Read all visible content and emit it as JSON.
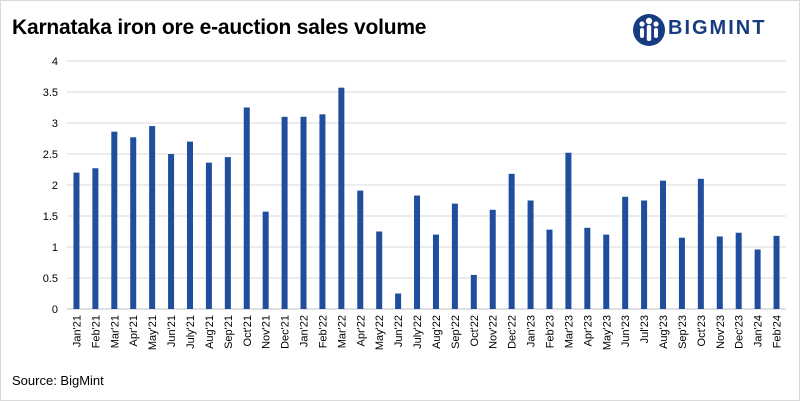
{
  "chart_data": {
    "type": "bar",
    "title": "Karnataka iron ore e-auction sales volume",
    "xlabel": "",
    "ylabel": "",
    "ylim": [
      0,
      4
    ],
    "yticks": [
      "0",
      "0.5",
      "1",
      "1.5",
      "2",
      "2.5",
      "3",
      "3.5",
      "4"
    ],
    "grid": true,
    "color": "#1f4e9e",
    "categories": [
      "Jan'21",
      "Feb'21",
      "Mar'21",
      "Apr'21",
      "May'21",
      "Jun'21",
      "July'21",
      "Aug'21",
      "Sep'21",
      "Oct'21",
      "Nov'21",
      "Dec'21",
      "Jan'22",
      "Feb'22",
      "Mar'22",
      "Apr'22",
      "May'22",
      "Jun'22",
      "July'22",
      "Aug'22",
      "Sep'22",
      "Oct'22",
      "Nov'22",
      "Dec'22",
      "Jan'23",
      "Feb'23",
      "Mar'23",
      "Apr'23",
      "May'23",
      "Jun'23",
      "Jul'23",
      "Aug'23",
      "Sep'23",
      "Oct'23",
      "Nov'23",
      "Dec'23",
      "Jan'24",
      "Feb'24"
    ],
    "values": [
      2.2,
      2.27,
      2.86,
      2.77,
      2.95,
      2.5,
      2.7,
      2.36,
      2.45,
      3.25,
      1.57,
      3.1,
      3.1,
      3.14,
      3.57,
      1.91,
      1.25,
      0.25,
      1.83,
      1.2,
      1.7,
      0.55,
      1.6,
      2.18,
      1.75,
      1.28,
      2.52,
      1.31,
      1.2,
      1.81,
      1.75,
      2.07,
      1.15,
      2.1,
      1.17,
      1.23,
      0.96,
      1.18
    ]
  },
  "logo": {
    "text": "BIGMINT",
    "color": "#173d80"
  },
  "source": "Source: BigMint"
}
